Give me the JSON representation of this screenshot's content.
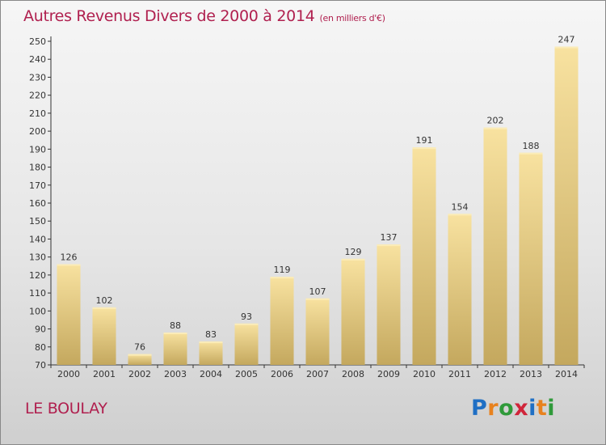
{
  "header": {
    "title": "Autres Revenus Divers de 2000 à 2014",
    "unit": "(en milliers d'€)"
  },
  "footer": {
    "place": "LE BOULAY"
  },
  "logo": {
    "letters": [
      {
        "ch": "P",
        "color": "#1f6fc4"
      },
      {
        "ch": "r",
        "color": "#e8821e"
      },
      {
        "ch": "o",
        "color": "#2f9a3a"
      },
      {
        "ch": "x",
        "color": "#d0253a"
      },
      {
        "ch": "i",
        "color": "#1f6fc4"
      },
      {
        "ch": "t",
        "color": "#e8821e"
      },
      {
        "ch": "i",
        "color": "#2f9a3a"
      }
    ]
  },
  "colors": {
    "title": "#b0204f",
    "bar_light": "#f8e2a0",
    "bar_dark": "#c4a85e",
    "axis": "#333333"
  },
  "chart_data": {
    "type": "bar",
    "categories": [
      "2000",
      "2001",
      "2002",
      "2003",
      "2004",
      "2005",
      "2006",
      "2007",
      "2008",
      "2009",
      "2010",
      "2011",
      "2012",
      "2013",
      "2014"
    ],
    "values": [
      126,
      102,
      76,
      88,
      83,
      93,
      119,
      107,
      129,
      137,
      191,
      154,
      202,
      188,
      247
    ],
    "data_labels": [
      "126",
      "102",
      "76",
      "88",
      "83",
      "93",
      "119",
      "107",
      "129",
      "137",
      "191",
      "154",
      "202",
      "188",
      "247"
    ],
    "ylim": [
      70,
      250
    ],
    "yticks": [
      70,
      80,
      90,
      100,
      110,
      120,
      130,
      140,
      150,
      160,
      170,
      180,
      190,
      200,
      210,
      220,
      230,
      240,
      250
    ],
    "grid": false,
    "legend": "none"
  }
}
